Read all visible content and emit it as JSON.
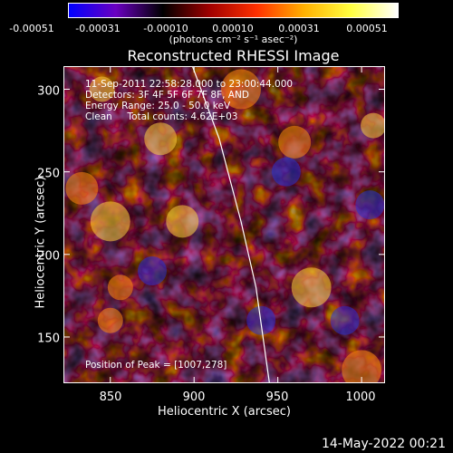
{
  "colorbar": {
    "ticks": [
      "-0.00051",
      "-0.00031",
      "-0.00010",
      "0.00010",
      "0.00031",
      "0.00051"
    ],
    "unit": "(photons cm⁻² s⁻¹ asec⁻²)",
    "colors": [
      "#0000ff",
      "#6a00c0",
      "#000000",
      "#a00000",
      "#ff3000",
      "#ffb000",
      "#ffff40",
      "#ffffff"
    ]
  },
  "info": {
    "time": "11-Sep-2011 22:58:28.000 to 23:00:44.000",
    "detectors": "Detectors: 3F 4F 5F 6F 7F 8F, AND",
    "energy": "Energy Range: 25.0 - 50.0 keV",
    "clean": "Clean     Total counts: 4.62E+03",
    "peak": "Position of Peak = [1007,278]"
  },
  "footer": "14-May-2022 00:21",
  "chart_data": {
    "type": "heatmap",
    "title": "Reconstructed RHESSI Image",
    "xlabel": "Heliocentric X (arcsec)",
    "ylabel": "Heliocentric Y (arcsec)",
    "xlim": [
      822,
      1014
    ],
    "ylim": [
      122,
      314
    ],
    "xticks": [
      850,
      900,
      950,
      1000
    ],
    "yticks": [
      150,
      200,
      250,
      300
    ],
    "x_tick_labels": [
      "850",
      "900",
      "950",
      "1000"
    ],
    "y_tick_labels": [
      "150",
      "200",
      "250",
      "300"
    ],
    "colormap_range": [
      -0.00051,
      0.00051
    ],
    "limb_curve": [
      [
        899,
        314
      ],
      [
        915,
        270
      ],
      [
        928,
        220
      ],
      [
        937,
        180
      ],
      [
        945,
        122
      ]
    ],
    "hotspots": [
      [
        845,
        300
      ],
      [
        833,
        240
      ],
      [
        850,
        220
      ],
      [
        856,
        180
      ],
      [
        893,
        220
      ],
      [
        928,
        300
      ],
      [
        1007,
        278
      ],
      [
        960,
        268
      ],
      [
        970,
        180
      ],
      [
        850,
        160
      ],
      [
        880,
        270
      ],
      [
        1000,
        130
      ]
    ],
    "cold_spots": [
      [
        955,
        250
      ],
      [
        940,
        160
      ],
      [
        990,
        160
      ],
      [
        875,
        190
      ],
      [
        1005,
        230
      ]
    ]
  }
}
